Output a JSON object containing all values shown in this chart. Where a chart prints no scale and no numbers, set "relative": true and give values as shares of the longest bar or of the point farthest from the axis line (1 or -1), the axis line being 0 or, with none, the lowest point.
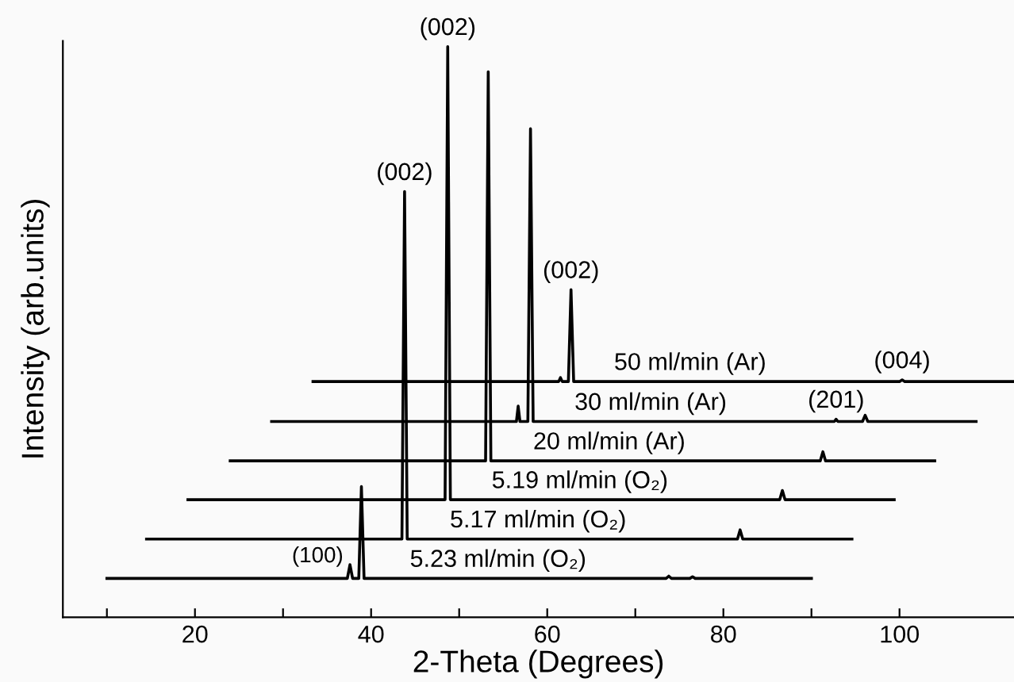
{
  "chart_data": {
    "type": "line",
    "relative": true,
    "xlabel": "2-Theta (Degrees)",
    "ylabel": "Intensity (arb.units)",
    "xlim": [
      5,
      113
    ],
    "xticks": [
      {
        "value": 10,
        "label": null
      },
      20,
      {
        "value": 30,
        "label": null
      },
      40,
      {
        "value": 50,
        "label": null
      },
      60,
      {
        "value": 70,
        "label": null
      },
      80,
      {
        "value": 90,
        "label": null
      },
      100
    ],
    "grid": false,
    "legend": false,
    "marker": "none",
    "line_style": "solid",
    "series": [
      {
        "name": "5.23 ml/min (O₂)",
        "color": "#000000",
        "x": [
          10,
          37.3,
          37.6,
          37.9,
          38.6,
          38.9,
          39.2,
          73.5,
          73.8,
          74.1,
          76.2,
          76.5,
          76.8,
          90
        ],
        "values": [
          0.068,
          0.068,
          0.092,
          0.068,
          0.068,
          0.229,
          0.068,
          0.068,
          0.072,
          0.068,
          0.068,
          0.071,
          0.068,
          0.068
        ]
      },
      {
        "name": "5.17 ml/min (O₂)",
        "color": "#000000",
        "x": [
          14.5,
          43.5,
          43.8,
          44.1,
          81.6,
          81.9,
          82.2,
          94.6
        ],
        "values": [
          0.137,
          0.137,
          0.746,
          0.137,
          0.137,
          0.153,
          0.137,
          0.137
        ]
      },
      {
        "name": "5.19 ml/min (O₂)",
        "color": "#000000",
        "x": [
          19.2,
          48.4,
          48.7,
          49.0,
          86.4,
          86.7,
          87.0,
          99.4
        ],
        "values": [
          0.206,
          0.206,
          1.0,
          0.206,
          0.206,
          0.222,
          0.206,
          0.206
        ]
      },
      {
        "name": "20 ml/min (Ar)",
        "color": "#000000",
        "x": [
          24.0,
          53.0,
          53.3,
          53.6,
          91.0,
          91.3,
          91.6,
          104.0
        ],
        "values": [
          0.274,
          0.274,
          0.956,
          0.274,
          0.274,
          0.29,
          0.274,
          0.274
        ]
      },
      {
        "name": "30 ml/min (Ar)",
        "color": "#000000",
        "x": [
          28.7,
          56.5,
          56.7,
          56.9,
          57.8,
          58.1,
          58.4,
          92.6,
          92.8,
          93.0,
          95.8,
          96.1,
          96.4,
          108.7
        ],
        "values": [
          0.343,
          0.343,
          0.37,
          0.343,
          0.343,
          0.856,
          0.343,
          0.343,
          0.347,
          0.343,
          0.343,
          0.354,
          0.343,
          0.343
        ]
      },
      {
        "name": "50 ml/min (Ar)",
        "color": "#000000",
        "x": [
          33.4,
          61.3,
          61.5,
          61.7,
          62.4,
          62.7,
          63.0,
          100.0,
          100.3,
          100.6,
          112.9
        ],
        "values": [
          0.413,
          0.413,
          0.42,
          0.413,
          0.413,
          0.574,
          0.413,
          0.413,
          0.416,
          0.413,
          0.413
        ]
      }
    ],
    "annotations": [
      {
        "text": "(100)",
        "x": 37.6,
        "y": 0.092
      },
      {
        "text": "(002)",
        "x": 43.8,
        "y": 0.746
      },
      {
        "text": "(002)",
        "x": 48.7,
        "y": 1.0
      },
      {
        "text": "(002)",
        "x": 62.7,
        "y": 0.574
      },
      {
        "text": "(201)",
        "x": 92.8,
        "y": 0.347
      },
      {
        "text": "(004)",
        "x": 100.3,
        "y": 0.416
      }
    ]
  }
}
